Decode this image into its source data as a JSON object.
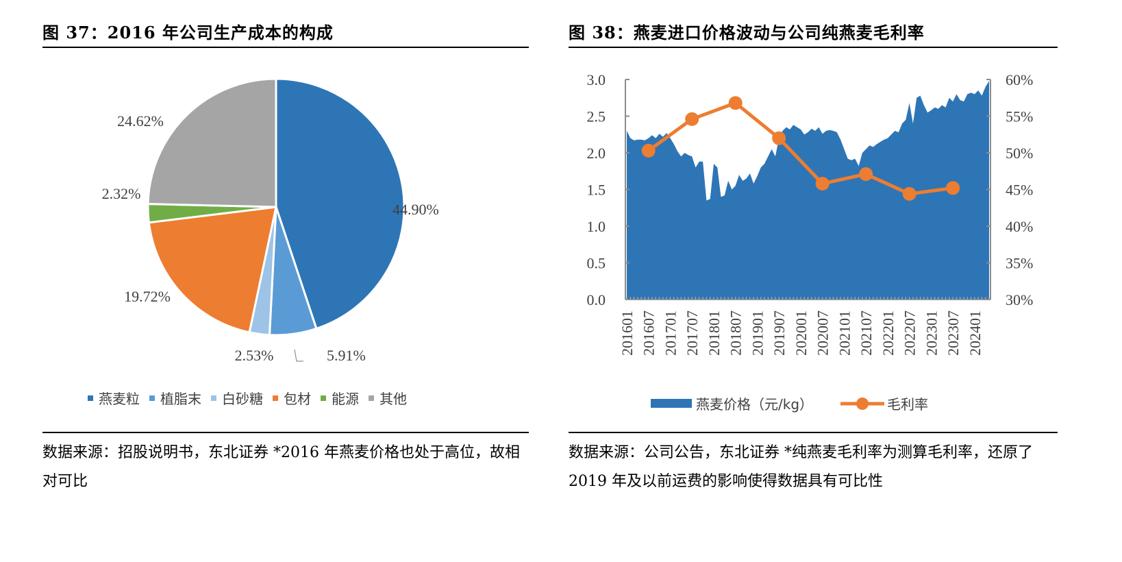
{
  "left": {
    "title": "图 37：2016 年公司生产成本的构成",
    "source": "数据来源：招股说明书，东北证券 *2016 年燕麦价格也处于高位，故相对可比"
  },
  "right": {
    "title": "图 38：燕麦进口价格波动与公司纯燕麦毛利率",
    "source": "数据来源：公司公告，东北证券 *纯燕麦毛利率为测算毛利率，还原了 2019 年及以前运费的影响使得数据具有可比性"
  },
  "chart_data": [
    {
      "type": "pie",
      "title": "2016 年公司生产成本的构成",
      "categories": [
        "燕麦粒",
        "植脂末",
        "白砂糖",
        "包材",
        "能源",
        "其他"
      ],
      "values": [
        44.9,
        5.91,
        2.53,
        19.72,
        2.32,
        24.62
      ],
      "labels": [
        "44.90%",
        "5.91%",
        "2.53%",
        "19.72%",
        "2.32%",
        "24.62%"
      ],
      "colors": [
        "#2E75B6",
        "#5B9BD5",
        "#9DC3E6",
        "#ED7D31",
        "#70AD47",
        "#A5A5A5"
      ],
      "legend_position": "bottom"
    },
    {
      "type": "area",
      "title": "燕麦进口价格波动与公司纯燕麦毛利率",
      "x_tick_labels": [
        "201601",
        "201607",
        "201701",
        "201707",
        "201801",
        "201807",
        "201901",
        "201907",
        "202001",
        "202007",
        "202101",
        "202107",
        "202201",
        "202207",
        "202301",
        "202307",
        "202401"
      ],
      "y_left": {
        "ticks": [
          "0.0",
          "0.5",
          "1.0",
          "1.5",
          "2.0",
          "2.5",
          "3.0"
        ],
        "range": [
          0,
          3.0
        ]
      },
      "y_right": {
        "ticks": [
          "30%",
          "35%",
          "40%",
          "45%",
          "50%",
          "55%",
          "60%"
        ],
        "range": [
          30,
          60
        ]
      },
      "legend_position": "bottom",
      "series": [
        {
          "name": "燕麦价格（元/kg）",
          "type": "area",
          "axis": "left",
          "color": "#2E75B6",
          "start": "201601",
          "frequency": "monthly",
          "values": [
            2.3,
            2.2,
            2.17,
            2.18,
            2.18,
            2.17,
            2.2,
            2.24,
            2.2,
            2.26,
            2.22,
            2.27,
            2.2,
            2.12,
            2.02,
            1.95,
            2.0,
            1.97,
            1.95,
            1.8,
            1.88,
            1.88,
            1.35,
            1.37,
            1.85,
            1.8,
            1.4,
            1.42,
            1.62,
            1.5,
            1.55,
            1.7,
            1.62,
            1.65,
            1.72,
            1.58,
            1.68,
            1.8,
            1.85,
            1.95,
            2.05,
            1.95,
            2.2,
            2.3,
            2.35,
            2.32,
            2.38,
            2.35,
            2.32,
            2.25,
            2.28,
            2.33,
            2.3,
            2.35,
            2.26,
            2.3,
            2.31,
            2.3,
            2.28,
            2.18,
            2.05,
            1.92,
            1.9,
            1.92,
            1.82,
            2.0,
            2.05,
            2.1,
            2.08,
            2.12,
            2.15,
            2.18,
            2.2,
            2.25,
            2.3,
            2.28,
            2.4,
            2.45,
            2.68,
            2.4,
            2.75,
            2.78,
            2.65,
            2.55,
            2.58,
            2.62,
            2.6,
            2.65,
            2.62,
            2.75,
            2.7,
            2.8,
            2.72,
            2.7,
            2.8,
            2.82,
            2.8,
            2.85,
            2.78,
            2.9,
            2.98
          ]
        },
        {
          "name": "毛利率",
          "type": "line",
          "axis": "right",
          "color": "#ED7D31",
          "x": [
            "201607",
            "201707",
            "201807",
            "201907",
            "202007",
            "202107",
            "202207",
            "202307"
          ],
          "values": [
            50.3,
            54.6,
            56.8,
            52.0,
            45.8,
            47.1,
            44.4,
            45.2
          ]
        }
      ]
    }
  ]
}
